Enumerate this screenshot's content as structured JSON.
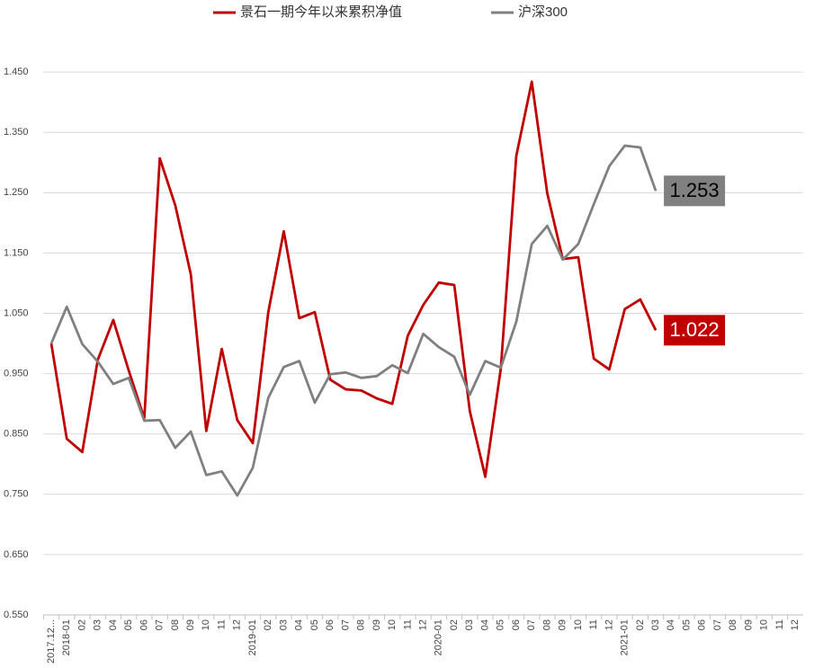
{
  "chart_data": {
    "type": "line",
    "categories": [
      "2017.12...",
      "2018-01",
      "02",
      "03",
      "04",
      "05",
      "06",
      "07",
      "08",
      "09",
      "10",
      "11",
      "12",
      "2019-01",
      "02",
      "03",
      "04",
      "05",
      "06",
      "07",
      "08",
      "09",
      "10",
      "11",
      "12",
      "2020-01",
      "02",
      "03",
      "04",
      "05",
      "06",
      "07",
      "08",
      "09",
      "10",
      "11",
      "12",
      "2021-01",
      "02",
      "03",
      "04",
      "05",
      "06",
      "07",
      "08",
      "09",
      "10",
      "11",
      "12"
    ],
    "series": [
      {
        "name": "景石一期今年以来累积净值",
        "color": "#c00000",
        "end_label": "1.022",
        "values": [
          1.0,
          0.842,
          0.82,
          0.973,
          1.039,
          0.955,
          0.876,
          1.307,
          1.229,
          1.115,
          0.855,
          0.991,
          0.873,
          0.835,
          1.052,
          1.186,
          1.042,
          1.052,
          0.94,
          0.924,
          0.922,
          0.909,
          0.9,
          1.013,
          1.064,
          1.101,
          1.097,
          0.888,
          0.779,
          0.958,
          1.311,
          1.434,
          1.249,
          1.14,
          1.143,
          0.975,
          0.957,
          1.057,
          1.073,
          1.022,
          null,
          null,
          null,
          null,
          null,
          null,
          null,
          null,
          null
        ]
      },
      {
        "name": "沪深300",
        "color": "#808080",
        "end_label": "1.253",
        "values": [
          1.0,
          1.061,
          0.999,
          0.97,
          0.933,
          0.943,
          0.872,
          0.873,
          0.827,
          0.854,
          0.782,
          0.788,
          0.748,
          0.794,
          0.91,
          0.961,
          0.971,
          0.902,
          0.949,
          0.952,
          0.943,
          0.946,
          0.964,
          0.951,
          1.016,
          0.994,
          0.978,
          0.915,
          0.971,
          0.96,
          1.036,
          1.165,
          1.195,
          1.139,
          1.165,
          1.231,
          1.294,
          1.328,
          1.325,
          1.253,
          null,
          null,
          null,
          null,
          null,
          null,
          null,
          null,
          null
        ]
      }
    ],
    "ylim": [
      0.55,
      1.5
    ],
    "yticks": [
      {
        "value": 0.55,
        "label": "0.550"
      },
      {
        "value": 0.65,
        "label": "0.650"
      },
      {
        "value": 0.75,
        "label": "0.750"
      },
      {
        "value": 0.85,
        "label": "0.850"
      },
      {
        "value": 0.95,
        "label": "0.950"
      },
      {
        "value": 1.05,
        "label": "1.050"
      },
      {
        "value": 1.15,
        "label": "1.150"
      },
      {
        "value": 1.25,
        "label": "1.250"
      },
      {
        "value": 1.35,
        "label": "1.350"
      },
      {
        "value": 1.45,
        "label": "1.450"
      }
    ],
    "grid": true
  }
}
